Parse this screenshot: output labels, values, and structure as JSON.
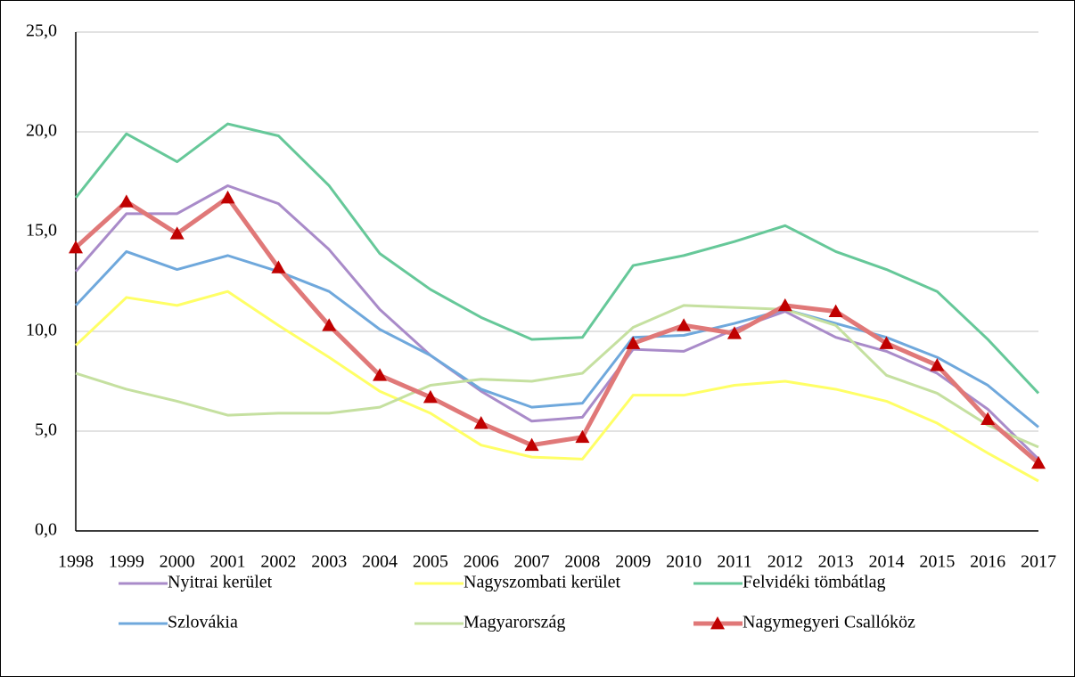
{
  "chart_data": {
    "type": "line",
    "categories": [
      "1998",
      "1999",
      "2000",
      "2001",
      "2002",
      "2003",
      "2004",
      "2005",
      "2006",
      "2007",
      "2008",
      "2009",
      "2010",
      "2011",
      "2012",
      "2013",
      "2014",
      "2015",
      "2016",
      "2017"
    ],
    "ylim": [
      0,
      25
    ],
    "yticks": [
      {
        "value": 0,
        "label": "0,0"
      },
      {
        "value": 5,
        "label": "5,0"
      },
      {
        "value": 10,
        "label": "10,0"
      },
      {
        "value": 15,
        "label": "15,0"
      },
      {
        "value": 20,
        "label": "20,0"
      },
      {
        "value": 25,
        "label": "25,0"
      }
    ],
    "grid": true,
    "legend": "bottom",
    "series": [
      {
        "name": "Nyitrai kerület",
        "color": "#a98bc9",
        "values": [
          13.0,
          15.9,
          15.9,
          17.3,
          16.4,
          14.1,
          11.1,
          8.8,
          7.0,
          5.5,
          5.7,
          9.1,
          9.0,
          10.1,
          11.0,
          9.7,
          9.0,
          7.9,
          6.1,
          3.6
        ]
      },
      {
        "name": "Nagyszombati kerület",
        "color": "#ffff66",
        "values": [
          9.3,
          11.7,
          11.3,
          12.0,
          10.3,
          8.7,
          7.0,
          5.9,
          4.3,
          3.7,
          3.6,
          6.8,
          6.8,
          7.3,
          7.5,
          7.1,
          6.5,
          5.4,
          3.9,
          2.5
        ]
      },
      {
        "name": "Felvidéki tömbátlag",
        "color": "#66c899",
        "values": [
          16.7,
          19.9,
          18.5,
          20.4,
          19.8,
          17.3,
          13.9,
          12.1,
          10.7,
          9.6,
          9.7,
          13.3,
          13.8,
          14.5,
          15.3,
          14.0,
          13.1,
          12.0,
          9.6,
          6.9
        ]
      },
      {
        "name": "Szlovákia",
        "color": "#6fa8dc",
        "values": [
          11.3,
          14.0,
          13.1,
          13.8,
          13.0,
          12.0,
          10.1,
          8.8,
          7.1,
          6.2,
          6.4,
          9.7,
          9.8,
          10.4,
          11.1,
          10.4,
          9.7,
          8.7,
          7.3,
          5.2
        ]
      },
      {
        "name": "Magyarország",
        "color": "#c5e0a0",
        "values": [
          7.9,
          7.1,
          6.5,
          5.8,
          5.9,
          5.9,
          6.2,
          7.3,
          7.6,
          7.5,
          7.9,
          10.2,
          11.3,
          11.2,
          11.1,
          10.3,
          7.8,
          6.9,
          5.3,
          4.2
        ]
      },
      {
        "name": "Nagymegyeri Csallóköz",
        "color": "#e07878",
        "marker": "triangle",
        "marker_color": "#c00000",
        "values": [
          14.2,
          16.5,
          14.9,
          16.7,
          13.2,
          10.3,
          7.8,
          6.7,
          5.4,
          4.3,
          4.7,
          9.4,
          10.3,
          9.9,
          11.3,
          11.0,
          9.4,
          8.3,
          5.6,
          3.4
        ]
      }
    ]
  }
}
